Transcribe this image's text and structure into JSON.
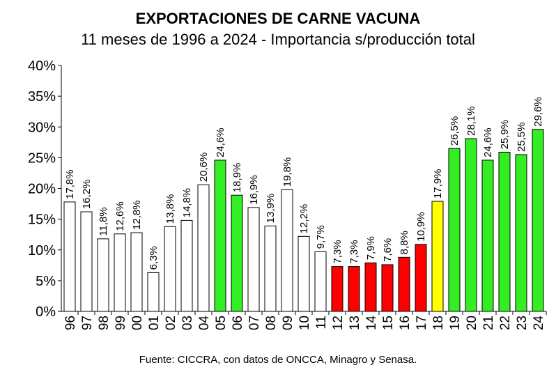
{
  "chart_data": {
    "type": "bar",
    "title": "EXPORTACIONES DE CARNE VACUNA",
    "subtitle": "11 meses de 1996 a 2024 - Importancia s/producción total",
    "source": "Fuente: CICCRA, con datos de ONCCA, Minagro y Senasa.",
    "xlabel": "",
    "ylabel": "",
    "ylim": [
      0,
      40
    ],
    "yticks": [
      "0%",
      "5%",
      "10%",
      "15%",
      "20%",
      "25%",
      "30%",
      "35%",
      "40%"
    ],
    "grid": false,
    "categories": [
      "96",
      "97",
      "98",
      "99",
      "00",
      "01",
      "02",
      "03",
      "04",
      "05",
      "06",
      "07",
      "08",
      "09",
      "10",
      "11",
      "12",
      "13",
      "14",
      "15",
      "16",
      "17",
      "18",
      "19",
      "20",
      "21",
      "22",
      "23",
      "24"
    ],
    "values": [
      17.8,
      16.2,
      11.8,
      12.6,
      12.8,
      6.3,
      13.8,
      14.8,
      20.6,
      24.6,
      18.9,
      16.9,
      13.9,
      19.8,
      12.2,
      9.7,
      7.3,
      7.3,
      7.9,
      7.6,
      8.8,
      10.9,
      17.9,
      26.5,
      28.1,
      24.6,
      25.9,
      25.5,
      29.6
    ],
    "data_labels": [
      "17,8%",
      "16,2%",
      "11,8%",
      "12,6%",
      "12,8%",
      "6,3%",
      "13,8%",
      "14,8%",
      "20,6%",
      "24,6%",
      "18,9%",
      "16,9%",
      "13,9%",
      "19,8%",
      "12,2%",
      "9,7%",
      "7,3%",
      "7,3%",
      "7,9%",
      "7,6%",
      "8,8%",
      "10,9%",
      "17,9%",
      "26,5%",
      "28,1%",
      "24,6%",
      "25,9%",
      "25,5%",
      "29,6%"
    ],
    "bar_colors": [
      "#ffffff",
      "#ffffff",
      "#ffffff",
      "#ffffff",
      "#ffffff",
      "#ffffff",
      "#ffffff",
      "#ffffff",
      "#ffffff",
      "#33ee22",
      "#33ee22",
      "#ffffff",
      "#ffffff",
      "#ffffff",
      "#ffffff",
      "#ffffff",
      "#ff0000",
      "#ff0000",
      "#ff0000",
      "#ff0000",
      "#ff0000",
      "#ff0000",
      "#ffff00",
      "#33ee22",
      "#33ee22",
      "#33ee22",
      "#33ee22",
      "#33ee22",
      "#33ee22"
    ]
  }
}
